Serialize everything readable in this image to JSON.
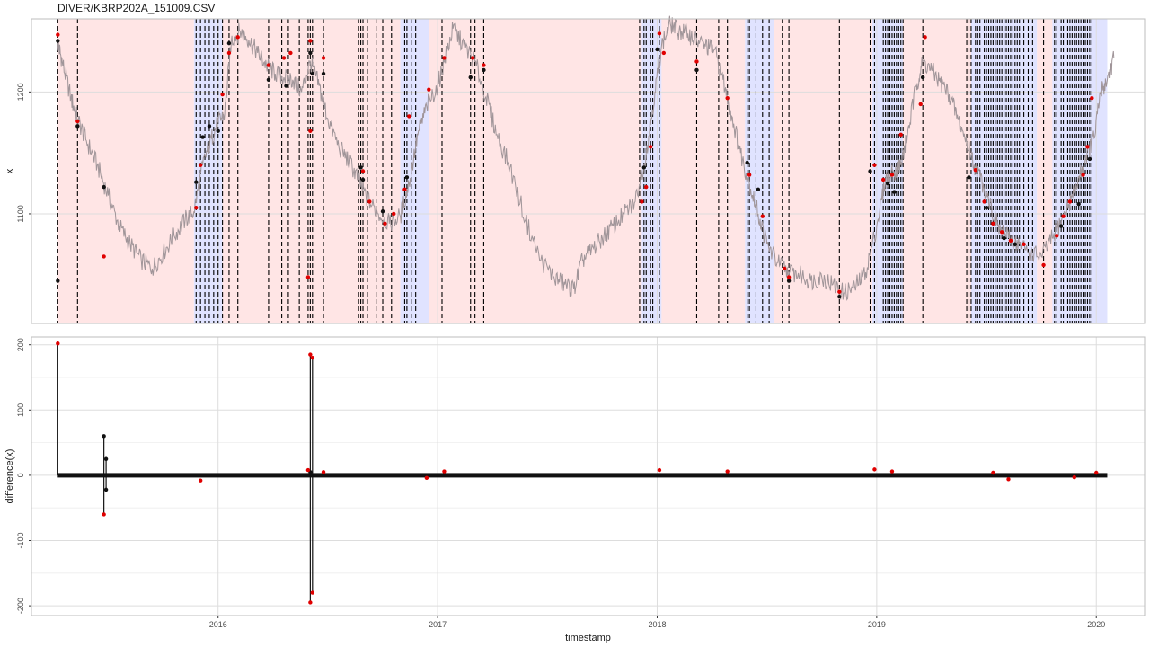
{
  "title": "DIVER/KBRP202A_151009.CSV",
  "colors": {
    "panel_border": "#bdbdbd",
    "grid": "#dddddd",
    "regime_a": "#ffe5e5",
    "regime_b": "#e0e3ff",
    "series": "#a09599",
    "point_normal": "#111111",
    "point_flag": "#e00000",
    "changepoint": "#000000"
  },
  "chart_data": [
    {
      "type": "line",
      "panel": "top",
      "ylabel": "x",
      "xlabel": "",
      "xlim": [
        2015.15,
        2020.22
      ],
      "ylim": [
        1010,
        1260
      ],
      "y_ticks": [
        1100,
        1200
      ],
      "y_tick_labels": [
        "1100",
        "1200"
      ],
      "background_regimes": [
        {
          "x0": 2015.27,
          "x1": 2015.89,
          "regime": "a"
        },
        {
          "x0": 2015.89,
          "x1": 2016.02,
          "regime": "b"
        },
        {
          "x0": 2016.02,
          "x1": 2016.83,
          "regime": "a"
        },
        {
          "x0": 2016.83,
          "x1": 2016.96,
          "regime": "b"
        },
        {
          "x0": 2016.96,
          "x1": 2017.93,
          "regime": "a"
        },
        {
          "x0": 2017.93,
          "x1": 2018.02,
          "regime": "b"
        },
        {
          "x0": 2018.02,
          "x1": 2018.4,
          "regime": "a"
        },
        {
          "x0": 2018.4,
          "x1": 2018.53,
          "regime": "b"
        },
        {
          "x0": 2018.53,
          "x1": 2018.98,
          "regime": "a"
        },
        {
          "x0": 2018.98,
          "x1": 2019.12,
          "regime": "b"
        },
        {
          "x0": 2019.12,
          "x1": 2019.43,
          "regime": "a"
        },
        {
          "x0": 2019.43,
          "x1": 2019.73,
          "regime": "b"
        },
        {
          "x0": 2019.73,
          "x1": 2019.8,
          "regime": "a"
        },
        {
          "x0": 2019.8,
          "x1": 2020.05,
          "regime": "b"
        }
      ],
      "changepoints": [
        2015.27,
        2015.36,
        2015.9,
        2015.92,
        2015.94,
        2015.96,
        2015.98,
        2016.0,
        2016.02,
        2016.05,
        2016.09,
        2016.23,
        2016.29,
        2016.32,
        2016.37,
        2016.41,
        2016.42,
        2016.43,
        2016.48,
        2016.64,
        2016.65,
        2016.66,
        2016.68,
        2016.72,
        2016.75,
        2016.79,
        2016.85,
        2016.86,
        2016.88,
        2016.9,
        2017.02,
        2017.15,
        2017.17,
        2017.21,
        2017.92,
        2017.94,
        2017.95,
        2017.97,
        2017.98,
        2018.01,
        2018.18,
        2018.28,
        2018.32,
        2018.41,
        2018.42,
        2018.45,
        2018.48,
        2018.51,
        2018.57,
        2018.6,
        2018.83,
        2018.97,
        2018.99,
        2019.03,
        2019.04,
        2019.05,
        2019.06,
        2019.07,
        2019.08,
        2019.09,
        2019.1,
        2019.11,
        2019.12,
        2019.21,
        2019.41,
        2019.42,
        2019.43,
        2019.45,
        2019.46,
        2019.47,
        2019.49,
        2019.5,
        2019.51,
        2019.52,
        2019.53,
        2019.54,
        2019.55,
        2019.56,
        2019.57,
        2019.58,
        2019.59,
        2019.6,
        2019.61,
        2019.62,
        2019.63,
        2019.64,
        2019.65,
        2019.67,
        2019.69,
        2019.71,
        2019.76,
        2019.81,
        2019.82,
        2019.84,
        2019.85,
        2019.87,
        2019.88,
        2019.89,
        2019.9,
        2019.91,
        2019.92,
        2019.93,
        2019.94,
        2019.95,
        2019.96,
        2019.97,
        2019.98
      ],
      "series": [
        {
          "x": [
            2015.27,
            2015.29,
            2015.33,
            2015.36,
            2015.4,
            2015.45,
            2015.5,
            2015.55,
            2015.6,
            2015.65,
            2015.7,
            2015.75,
            2015.8,
            2015.85,
            2015.89,
            2015.93,
            2015.97,
            2016.0,
            2016.03,
            2016.06,
            2016.1,
            2016.14,
            2016.18,
            2016.22,
            2016.26,
            2016.3,
            2016.34,
            2016.38,
            2016.42,
            2016.46,
            2016.5,
            2016.55,
            2016.6,
            2016.64,
            2016.68,
            2016.73,
            2016.78,
            2016.83,
            2016.87,
            2016.91,
            2016.95,
            2017.0,
            2017.03,
            2017.07,
            2017.12,
            2017.17,
            2017.22,
            2017.27,
            2017.33,
            2017.4,
            2017.47,
            2017.53,
            2017.58,
            2017.62,
            2017.66,
            2017.7,
            2017.75,
            2017.8,
            2017.85,
            2017.9,
            2017.95,
            2017.99,
            2018.02,
            2018.06,
            2018.1,
            2018.14,
            2018.18,
            2018.22,
            2018.26,
            2018.3,
            2018.34,
            2018.38,
            2018.42,
            2018.46,
            2018.5,
            2018.55,
            2018.6,
            2018.65,
            2018.7,
            2018.75,
            2018.8,
            2018.85,
            2018.9,
            2018.95,
            2019.0,
            2019.04,
            2019.08,
            2019.11,
            2019.14,
            2019.18,
            2019.21,
            2019.25,
            2019.29,
            2019.33,
            2019.37,
            2019.41,
            2019.45,
            2019.5,
            2019.55,
            2019.6,
            2019.65,
            2019.7,
            2019.75,
            2019.8,
            2019.85,
            2019.9,
            2019.95,
            2019.99,
            2020.02,
            2020.05,
            2020.08
          ],
          "y": [
            1240,
            1225,
            1195,
            1178,
            1160,
            1140,
            1115,
            1090,
            1075,
            1062,
            1055,
            1068,
            1082,
            1095,
            1102,
            1140,
            1162,
            1175,
            1182,
            1242,
            1250,
            1243,
            1232,
            1222,
            1215,
            1212,
            1210,
            1200,
            1225,
            1205,
            1178,
            1155,
            1142,
            1128,
            1112,
            1100,
            1092,
            1098,
            1125,
            1165,
            1188,
            1205,
            1225,
            1252,
            1238,
            1225,
            1196,
            1165,
            1138,
            1095,
            1062,
            1048,
            1042,
            1038,
            1062,
            1070,
            1080,
            1090,
            1100,
            1110,
            1150,
            1200,
            1238,
            1256,
            1250,
            1248,
            1242,
            1238,
            1235,
            1210,
            1180,
            1150,
            1125,
            1100,
            1075,
            1060,
            1052,
            1050,
            1045,
            1048,
            1042,
            1035,
            1040,
            1052,
            1090,
            1128,
            1135,
            1140,
            1165,
            1205,
            1225,
            1218,
            1208,
            1198,
            1178,
            1158,
            1138,
            1118,
            1090,
            1080,
            1075,
            1068,
            1065,
            1080,
            1098,
            1118,
            1145,
            1162,
            1200,
            1210,
            1228
          ]
        }
      ],
      "points_normal": [
        {
          "x": 2015.27,
          "y": 1242
        },
        {
          "x": 2015.27,
          "y": 1045
        },
        {
          "x": 2015.36,
          "y": 1172
        },
        {
          "x": 2015.48,
          "y": 1122
        },
        {
          "x": 2015.9,
          "y": 1126
        },
        {
          "x": 2015.93,
          "y": 1163
        },
        {
          "x": 2015.96,
          "y": 1172
        },
        {
          "x": 2016.0,
          "y": 1168
        },
        {
          "x": 2016.05,
          "y": 1240
        },
        {
          "x": 2016.23,
          "y": 1210
        },
        {
          "x": 2016.31,
          "y": 1205
        },
        {
          "x": 2016.42,
          "y": 1232
        },
        {
          "x": 2016.43,
          "y": 1215
        },
        {
          "x": 2016.48,
          "y": 1215
        },
        {
          "x": 2016.65,
          "y": 1138
        },
        {
          "x": 2016.66,
          "y": 1128
        },
        {
          "x": 2016.75,
          "y": 1102
        },
        {
          "x": 2016.86,
          "y": 1130
        },
        {
          "x": 2017.15,
          "y": 1212
        },
        {
          "x": 2017.21,
          "y": 1218
        },
        {
          "x": 2017.94,
          "y": 1138
        },
        {
          "x": 2018.0,
          "y": 1235
        },
        {
          "x": 2018.18,
          "y": 1218
        },
        {
          "x": 2018.41,
          "y": 1142
        },
        {
          "x": 2018.46,
          "y": 1120
        },
        {
          "x": 2018.6,
          "y": 1045
        },
        {
          "x": 2018.83,
          "y": 1032
        },
        {
          "x": 2018.97,
          "y": 1135
        },
        {
          "x": 2019.05,
          "y": 1125
        },
        {
          "x": 2019.08,
          "y": 1118
        },
        {
          "x": 2019.21,
          "y": 1212
        },
        {
          "x": 2019.42,
          "y": 1130
        },
        {
          "x": 2019.5,
          "y": 1105
        },
        {
          "x": 2019.58,
          "y": 1080
        },
        {
          "x": 2019.63,
          "y": 1075
        },
        {
          "x": 2019.84,
          "y": 1090
        },
        {
          "x": 2019.92,
          "y": 1108
        },
        {
          "x": 2019.97,
          "y": 1145
        }
      ],
      "points_flag": [
        {
          "x": 2015.27,
          "y": 1247
        },
        {
          "x": 2015.36,
          "y": 1176
        },
        {
          "x": 2015.48,
          "y": 1065
        },
        {
          "x": 2015.9,
          "y": 1105
        },
        {
          "x": 2015.92,
          "y": 1140
        },
        {
          "x": 2016.02,
          "y": 1198
        },
        {
          "x": 2016.05,
          "y": 1232
        },
        {
          "x": 2016.09,
          "y": 1245
        },
        {
          "x": 2016.23,
          "y": 1222
        },
        {
          "x": 2016.3,
          "y": 1228
        },
        {
          "x": 2016.33,
          "y": 1232
        },
        {
          "x": 2016.41,
          "y": 1048
        },
        {
          "x": 2016.42,
          "y": 1242
        },
        {
          "x": 2016.42,
          "y": 1168
        },
        {
          "x": 2016.48,
          "y": 1228
        },
        {
          "x": 2016.66,
          "y": 1135
        },
        {
          "x": 2016.69,
          "y": 1110
        },
        {
          "x": 2016.76,
          "y": 1092
        },
        {
          "x": 2016.8,
          "y": 1100
        },
        {
          "x": 2016.85,
          "y": 1120
        },
        {
          "x": 2016.87,
          "y": 1180
        },
        {
          "x": 2016.96,
          "y": 1202
        },
        {
          "x": 2017.03,
          "y": 1228
        },
        {
          "x": 2017.16,
          "y": 1228
        },
        {
          "x": 2017.21,
          "y": 1222
        },
        {
          "x": 2017.93,
          "y": 1110
        },
        {
          "x": 2017.95,
          "y": 1122
        },
        {
          "x": 2017.97,
          "y": 1155
        },
        {
          "x": 2018.01,
          "y": 1248
        },
        {
          "x": 2018.03,
          "y": 1232
        },
        {
          "x": 2018.18,
          "y": 1225
        },
        {
          "x": 2018.32,
          "y": 1195
        },
        {
          "x": 2018.42,
          "y": 1132
        },
        {
          "x": 2018.48,
          "y": 1098
        },
        {
          "x": 2018.58,
          "y": 1055
        },
        {
          "x": 2018.6,
          "y": 1048
        },
        {
          "x": 2018.83,
          "y": 1036
        },
        {
          "x": 2018.99,
          "y": 1140
        },
        {
          "x": 2019.03,
          "y": 1128
        },
        {
          "x": 2019.07,
          "y": 1132
        },
        {
          "x": 2019.11,
          "y": 1165
        },
        {
          "x": 2019.2,
          "y": 1190
        },
        {
          "x": 2019.22,
          "y": 1245
        },
        {
          "x": 2019.45,
          "y": 1136
        },
        {
          "x": 2019.49,
          "y": 1110
        },
        {
          "x": 2019.53,
          "y": 1092
        },
        {
          "x": 2019.57,
          "y": 1085
        },
        {
          "x": 2019.61,
          "y": 1078
        },
        {
          "x": 2019.67,
          "y": 1075
        },
        {
          "x": 2019.76,
          "y": 1058
        },
        {
          "x": 2019.82,
          "y": 1082
        },
        {
          "x": 2019.85,
          "y": 1098
        },
        {
          "x": 2019.88,
          "y": 1110
        },
        {
          "x": 2019.94,
          "y": 1132
        },
        {
          "x": 2019.96,
          "y": 1155
        },
        {
          "x": 2019.98,
          "y": 1195
        }
      ]
    },
    {
      "type": "scatter",
      "panel": "bottom",
      "xlabel": "timestamp",
      "ylabel": "difference(x)",
      "xlim": [
        2015.15,
        2020.22
      ],
      "ylim": [
        -215,
        212
      ],
      "x_ticks": [
        2016,
        2017,
        2018,
        2019,
        2020
      ],
      "x_tick_labels": [
        "2016",
        "2017",
        "2018",
        "2019",
        "2020"
      ],
      "y_ticks": [
        -200,
        -100,
        0,
        100,
        200
      ],
      "y_tick_labels": [
        "-200",
        "-100",
        "0",
        "100",
        "200"
      ],
      "baseline": {
        "x0": 2015.27,
        "x1": 2020.05,
        "y": 0
      },
      "spikes": [
        {
          "x": 2015.27,
          "y0": 0,
          "y1": 202
        },
        {
          "x": 2015.48,
          "y0": -60,
          "y1": 60
        },
        {
          "x": 2015.49,
          "y0": -22,
          "y1": 25
        },
        {
          "x": 2016.42,
          "y0": -195,
          "y1": 185
        },
        {
          "x": 2016.43,
          "y0": -180,
          "y1": 180
        }
      ],
      "points_normal": [
        {
          "x": 2015.48,
          "y": 60
        },
        {
          "x": 2015.49,
          "y": 25
        },
        {
          "x": 2015.49,
          "y": -22
        },
        {
          "x": 2016.42,
          "y": 5
        }
      ],
      "points_flag": [
        {
          "x": 2015.27,
          "y": 202
        },
        {
          "x": 2015.48,
          "y": -60
        },
        {
          "x": 2016.42,
          "y": 185
        },
        {
          "x": 2016.43,
          "y": 180
        },
        {
          "x": 2016.42,
          "y": -195
        },
        {
          "x": 2016.43,
          "y": -180
        },
        {
          "x": 2015.92,
          "y": -8
        },
        {
          "x": 2016.41,
          "y": 8
        },
        {
          "x": 2016.48,
          "y": 5
        },
        {
          "x": 2016.95,
          "y": -4
        },
        {
          "x": 2017.03,
          "y": 6
        },
        {
          "x": 2018.01,
          "y": 8
        },
        {
          "x": 2018.32,
          "y": 6
        },
        {
          "x": 2018.99,
          "y": 9
        },
        {
          "x": 2019.07,
          "y": 6
        },
        {
          "x": 2019.53,
          "y": 4
        },
        {
          "x": 2019.6,
          "y": -6
        },
        {
          "x": 2019.9,
          "y": -3
        },
        {
          "x": 2020.0,
          "y": 4
        }
      ]
    }
  ]
}
